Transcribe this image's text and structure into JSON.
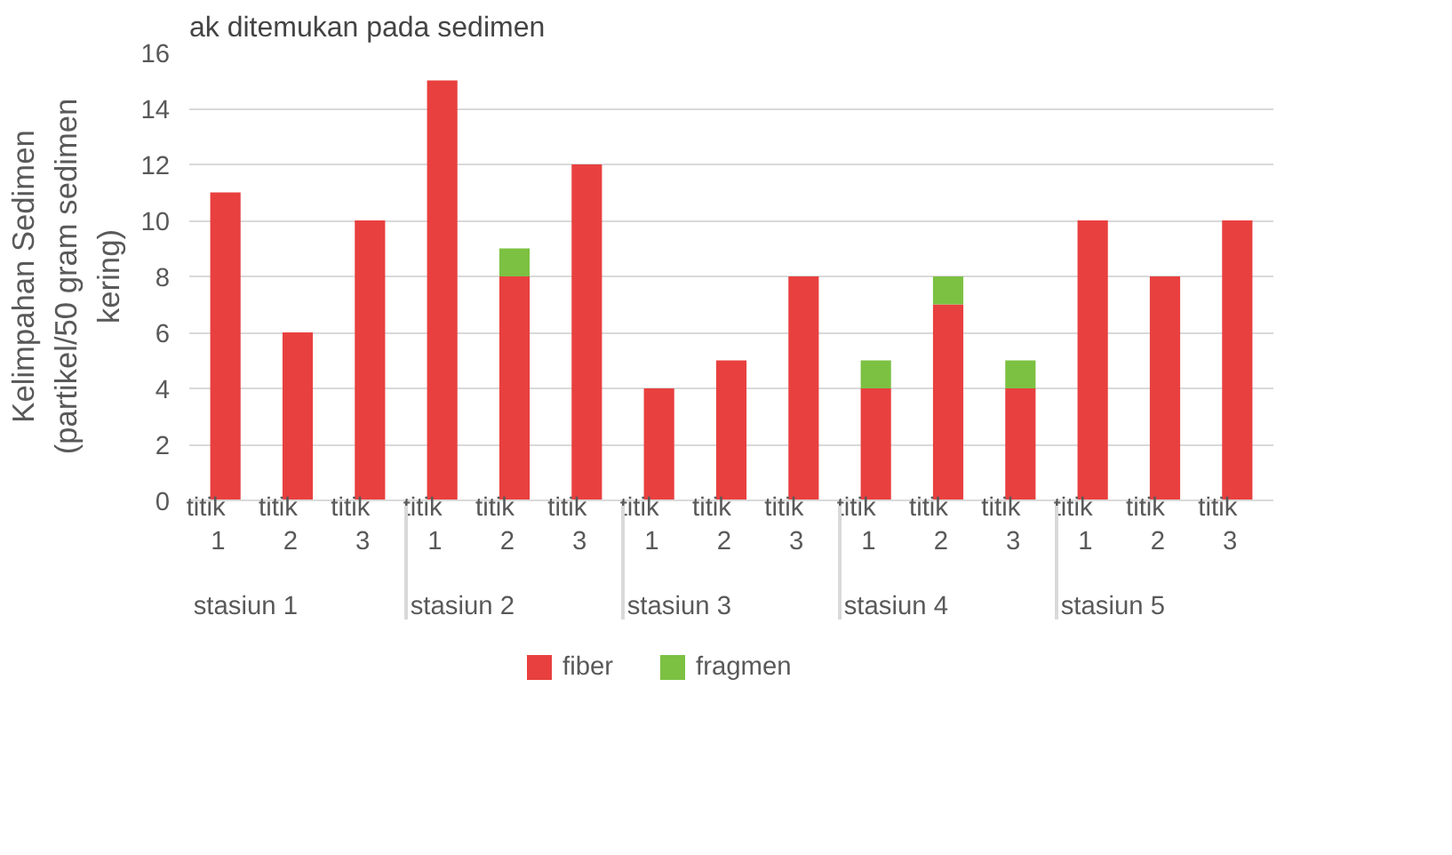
{
  "chart_data": {
    "type": "bar",
    "stacked": true,
    "categories": [
      "titik 1",
      "titik 2",
      "titik 3",
      "titik 1",
      "titik 2",
      "titik 3",
      "titik 1",
      "titik 2",
      "titik 3",
      "titik 1",
      "titik 2",
      "titik 3",
      "titik 1",
      "titik 2",
      "titik 3"
    ],
    "series": [
      {
        "name": "fiber",
        "color": "#e8403f",
        "values": [
          11,
          6,
          10,
          15,
          8,
          12,
          4,
          5,
          8,
          4,
          7,
          4,
          10,
          8,
          10
        ]
      },
      {
        "name": "fragmen",
        "color": "#7cc142",
        "values": [
          0,
          0,
          0,
          0,
          1,
          0,
          0,
          0,
          0,
          1,
          1,
          1,
          0,
          0,
          0
        ]
      }
    ],
    "ylabel": "Kelimpahan Sedimen\n(partikel/50 gram sedimen\nkering)",
    "ylim": [
      0,
      16
    ],
    "yticks": [
      0,
      2,
      4,
      6,
      8,
      10,
      12,
      14,
      16
    ],
    "grid": "y",
    "legend": "bottom",
    "annotations": [
      "ak ditemukan pada sedimen",
      "stasiun 1",
      "stasiun 2",
      "stasiun 3",
      "stasiun 4",
      "stasiun 5"
    ]
  }
}
